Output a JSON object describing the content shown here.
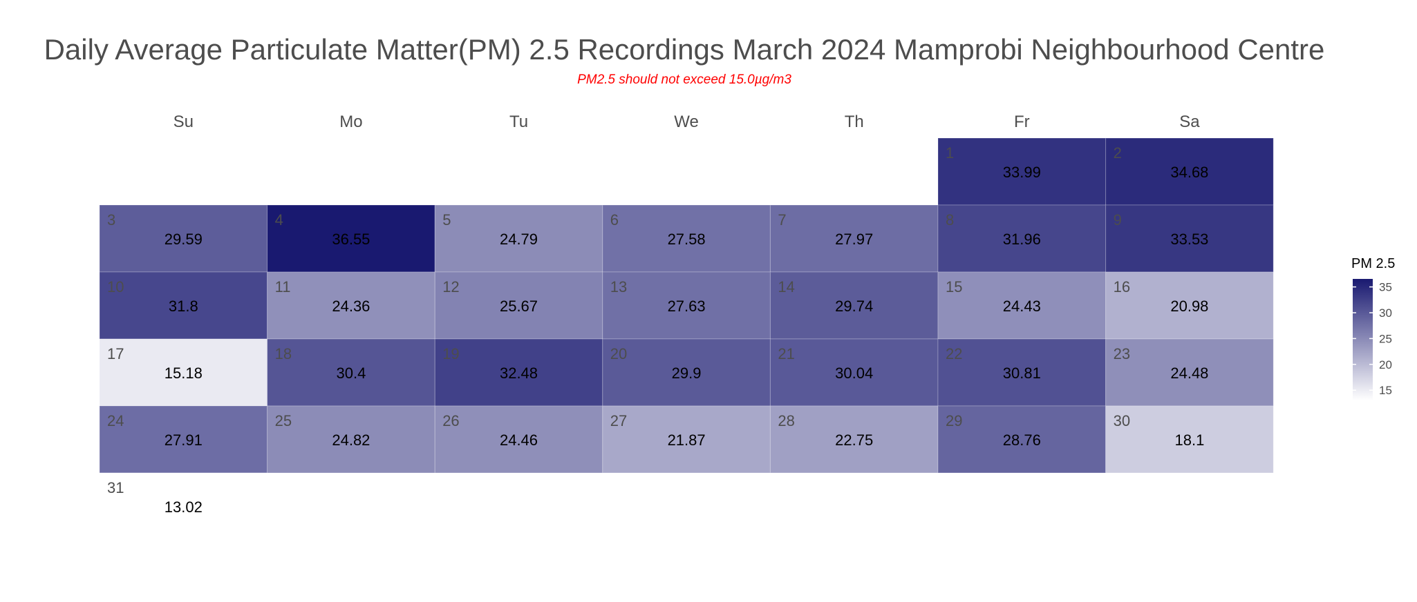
{
  "chart_data": {
    "type": "heatmap",
    "title": "Daily Average Particulate Matter(PM) 2.5 Recordings March 2024 Mamprobi Neighbourhood Centre",
    "subtitle": "PM2.5 should not exceed 15.0µg/m3",
    "weekdays": [
      "Su",
      "Mo",
      "Tu",
      "We",
      "Th",
      "Fr",
      "Sa"
    ],
    "first_weekday_index": 5,
    "days": [
      1,
      2,
      3,
      4,
      5,
      6,
      7,
      8,
      9,
      10,
      11,
      12,
      13,
      14,
      15,
      16,
      17,
      18,
      19,
      20,
      21,
      22,
      23,
      24,
      25,
      26,
      27,
      28,
      29,
      30,
      31
    ],
    "values": [
      33.99,
      34.68,
      29.59,
      36.55,
      24.79,
      27.58,
      27.97,
      31.96,
      33.53,
      31.8,
      24.36,
      25.67,
      27.63,
      29.74,
      24.43,
      20.98,
      15.18,
      30.4,
      32.48,
      29.9,
      30.04,
      30.81,
      24.48,
      27.91,
      24.82,
      24.46,
      21.87,
      22.75,
      28.76,
      18.1,
      13.02
    ],
    "legend": {
      "title": "PM 2.5",
      "position": "right",
      "ticks": [
        15,
        20,
        25,
        30,
        35
      ],
      "range": [
        13.02,
        36.55
      ],
      "low_color": "#ffffff",
      "high_color": "#191970"
    }
  }
}
